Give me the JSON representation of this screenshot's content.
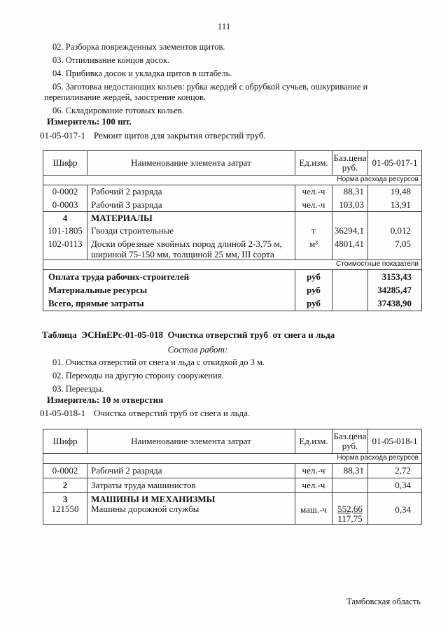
{
  "page": {
    "number": "111",
    "footer": "Тамбовская область"
  },
  "section1": {
    "work_items": [
      "02. Разборка поврежденных элементов щитов.",
      "03. Отпиливание концов досок.",
      "04. Прибивка досок и укладка щитов в штабель.",
      "05. Заготовка недостающих кольев: рубка жердей с обрубкой сучьев, ошкуривание и перепиливание жердей, заострение концов.",
      "06. Складирование готовых кольев."
    ],
    "measurer": "Измеритель: 100 шт.",
    "code": "01-05-017-1",
    "code_title": "Ремонт щитов для закрытия отверстий труб."
  },
  "table1": {
    "headers": {
      "code": "Шифр",
      "name": "Наименование элемента затрат",
      "unit": "Ед.изм.",
      "price_line1": "Баз.цена",
      "price_line2": "руб.",
      "norm_code": "01-05-017-1"
    },
    "subheader_norm": "Норма расхода ресурсов",
    "rows": [
      {
        "code": "0-0002",
        "name": "Рабочий 2 разряда",
        "unit": "чел.-ч",
        "price": "88,31",
        "norm": "19,48"
      },
      {
        "code": "0-0003",
        "name": "Рабочий 3 разряда",
        "unit": "чел.-ч",
        "price": "103,03",
        "norm": "13,91"
      },
      {
        "code": "4",
        "name": "МАТЕРИАЛЫ",
        "unit": "",
        "price": "",
        "norm": ""
      },
      {
        "code": "101-1805",
        "name": "Гвозди строительные",
        "unit": "т",
        "price": "36294,1",
        "norm": "0,012"
      },
      {
        "code": "102-0113",
        "name": "Доски обрезные хвойных пород длиной 2-3,75 м, шириной 75-150 мм, толщиной 25 мм, III сорта",
        "unit": "м³",
        "price": "4801,41",
        "norm": "7,05"
      }
    ],
    "subheader_cost": "Стоимостные показатели",
    "totals": [
      {
        "label": "Оплата труда рабочих-строителей",
        "unit": "руб",
        "value": "3153,43"
      },
      {
        "label": "Материальные ресурсы",
        "unit": "руб",
        "value": "34285,47"
      },
      {
        "label": "Всего, прямые затраты",
        "unit": "руб",
        "value": "37438,90"
      }
    ]
  },
  "section2": {
    "table_title": "Таблица  ЭСНиЕРс-01-05-018  Очистка отверстий труб  от снега и льда",
    "composition_label": "Состав работ:",
    "work_items": [
      "01. Очистка отверстий от снега и льда с откидкой до 3 м.",
      "02. Переходы на другую сторону сооружения.",
      "03. Переезды."
    ],
    "measurer": "Измеритель: 10 м отверстия",
    "code": "01-05-018-1",
    "code_title": "Очистка отверстий труб от снега и льда."
  },
  "table2": {
    "headers": {
      "code": "Шифр",
      "name": "Наименование элемента затрат",
      "unit": "Ед.изм.",
      "price_line1": "Баз.цена",
      "price_line2": "руб.",
      "norm_code": "01-05-018-1"
    },
    "subheader_norm": "Норма расхода ресурсов",
    "rows": [
      {
        "code": "0-0002",
        "name": "Рабочий 2 разряда",
        "unit": "чел.-ч",
        "price": "88,31",
        "norm": "2,72"
      },
      {
        "code": "2",
        "name": "Затраты труда машинистов",
        "unit": "чел.-ч",
        "price": "",
        "norm": "0,34"
      }
    ],
    "machines": {
      "code_line1": "3",
      "name_line1": "МАШИНЫ И МЕХАНИЗМЫ",
      "code_line2": "121550",
      "name_line2": "Машины дорожной службы",
      "unit": "маш.-ч",
      "price_top": "552,66",
      "price_bottom": "117,75",
      "norm": "0,34"
    }
  }
}
